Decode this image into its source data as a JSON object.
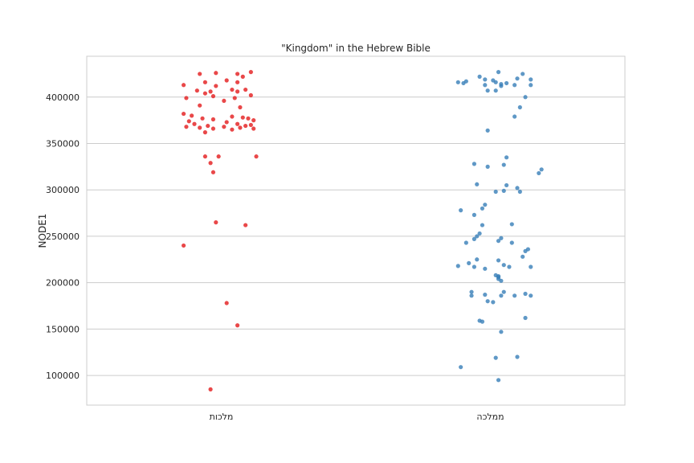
{
  "chart_data": {
    "type": "scatter",
    "title": "\"Kingdom\" in the Hebrew Bible",
    "xlabel": "",
    "ylabel": "NODE1",
    "categories": [
      "מלכות",
      "ממלכה"
    ],
    "ylim": [
      68000,
      444000
    ],
    "yticks": [
      100000,
      150000,
      200000,
      250000,
      300000,
      350000,
      400000
    ],
    "grid": "horizontal",
    "series": [
      {
        "category": "מלכות",
        "color": "#e41a1c",
        "points": [
          [
            0.11,
            427000
          ],
          [
            -0.02,
            426000
          ],
          [
            0.06,
            425000
          ],
          [
            -0.08,
            425000
          ],
          [
            0.08,
            422000
          ],
          [
            0.02,
            418000
          ],
          [
            -0.06,
            416000
          ],
          [
            -0.14,
            413000
          ],
          [
            0.06,
            416000
          ],
          [
            -0.02,
            412000
          ],
          [
            0.04,
            408000
          ],
          [
            0.09,
            408000
          ],
          [
            -0.09,
            407000
          ],
          [
            -0.04,
            406000
          ],
          [
            0.06,
            406000
          ],
          [
            -0.06,
            404000
          ],
          [
            0.11,
            402000
          ],
          [
            -0.03,
            401000
          ],
          [
            -0.13,
            399000
          ],
          [
            0.05,
            399000
          ],
          [
            0.01,
            396000
          ],
          [
            -0.08,
            391000
          ],
          [
            0.07,
            389000
          ],
          [
            -0.14,
            382000
          ],
          [
            -0.11,
            380000
          ],
          [
            0.04,
            379000
          ],
          [
            0.08,
            378000
          ],
          [
            -0.07,
            377000
          ],
          [
            0.1,
            377000
          ],
          [
            -0.03,
            376000
          ],
          [
            0.12,
            375000
          ],
          [
            -0.12,
            374000
          ],
          [
            0.02,
            373000
          ],
          [
            -0.1,
            371000
          ],
          [
            0.06,
            371000
          ],
          [
            0.11,
            370000
          ],
          [
            -0.05,
            369000
          ],
          [
            0.09,
            369000
          ],
          [
            -0.13,
            368000
          ],
          [
            0.01,
            368000
          ],
          [
            -0.08,
            367000
          ],
          [
            0.07,
            367000
          ],
          [
            -0.03,
            366000
          ],
          [
            0.12,
            366000
          ],
          [
            0.04,
            365000
          ],
          [
            -0.06,
            362000
          ],
          [
            -0.06,
            336000
          ],
          [
            -0.01,
            336000
          ],
          [
            0.13,
            336000
          ],
          [
            -0.04,
            329000
          ],
          [
            -0.03,
            319000
          ],
          [
            -0.02,
            265000
          ],
          [
            0.09,
            262000
          ],
          [
            -0.14,
            240000
          ],
          [
            0.02,
            178000
          ],
          [
            0.06,
            154000
          ],
          [
            -0.04,
            85000
          ]
        ]
      },
      {
        "category": "ממלכה",
        "color": "#377eb8",
        "points": [
          [
            0.03,
            427000
          ],
          [
            0.12,
            425000
          ],
          [
            -0.04,
            422000
          ],
          [
            0.1,
            420000
          ],
          [
            -0.02,
            419000
          ],
          [
            0.15,
            419000
          ],
          [
            0.01,
            418000
          ],
          [
            -0.09,
            417000
          ],
          [
            -0.12,
            416000
          ],
          [
            0.02,
            416000
          ],
          [
            0.06,
            415000
          ],
          [
            -0.1,
            415000
          ],
          [
            0.04,
            414000
          ],
          [
            0.15,
            413000
          ],
          [
            -0.02,
            413000
          ],
          [
            0.09,
            413000
          ],
          [
            0.04,
            412000
          ],
          [
            -0.01,
            407000
          ],
          [
            0.02,
            407000
          ],
          [
            0.13,
            400000
          ],
          [
            0.11,
            389000
          ],
          [
            0.09,
            379000
          ],
          [
            -0.01,
            364000
          ],
          [
            0.06,
            335000
          ],
          [
            -0.06,
            328000
          ],
          [
            0.05,
            327000
          ],
          [
            -0.01,
            325000
          ],
          [
            0.19,
            322000
          ],
          [
            0.18,
            318000
          ],
          [
            -0.05,
            306000
          ],
          [
            0.06,
            305000
          ],
          [
            0.1,
            302000
          ],
          [
            0.05,
            299000
          ],
          [
            0.02,
            298000
          ],
          [
            0.11,
            298000
          ],
          [
            -0.02,
            284000
          ],
          [
            -0.03,
            280000
          ],
          [
            -0.11,
            278000
          ],
          [
            -0.06,
            273000
          ],
          [
            0.08,
            263000
          ],
          [
            -0.03,
            262000
          ],
          [
            -0.04,
            253000
          ],
          [
            -0.05,
            250000
          ],
          [
            0.04,
            248000
          ],
          [
            -0.06,
            247000
          ],
          [
            0.03,
            245000
          ],
          [
            0.08,
            243000
          ],
          [
            -0.09,
            243000
          ],
          [
            0.14,
            236000
          ],
          [
            0.13,
            234000
          ],
          [
            0.12,
            228000
          ],
          [
            -0.05,
            225000
          ],
          [
            0.03,
            224000
          ],
          [
            -0.08,
            221000
          ],
          [
            0.05,
            219000
          ],
          [
            -0.12,
            218000
          ],
          [
            0.07,
            217000
          ],
          [
            0.15,
            217000
          ],
          [
            -0.06,
            217000
          ],
          [
            -0.02,
            215000
          ],
          [
            0.02,
            208000
          ],
          [
            0.03,
            207000
          ],
          [
            0.03,
            206000
          ],
          [
            0.03,
            204000
          ],
          [
            0.04,
            202000
          ],
          [
            -0.07,
            190000
          ],
          [
            0.05,
            190000
          ],
          [
            0.13,
            188000
          ],
          [
            -0.02,
            187000
          ],
          [
            -0.07,
            186000
          ],
          [
            0.04,
            186000
          ],
          [
            0.15,
            186000
          ],
          [
            0.09,
            186000
          ],
          [
            -0.01,
            180000
          ],
          [
            0.01,
            179000
          ],
          [
            0.13,
            162000
          ],
          [
            -0.04,
            159000
          ],
          [
            -0.03,
            158000
          ],
          [
            0.04,
            147000
          ],
          [
            0.1,
            120000
          ],
          [
            0.02,
            119000
          ],
          [
            -0.11,
            109000
          ],
          [
            0.03,
            95000
          ]
        ]
      }
    ]
  }
}
